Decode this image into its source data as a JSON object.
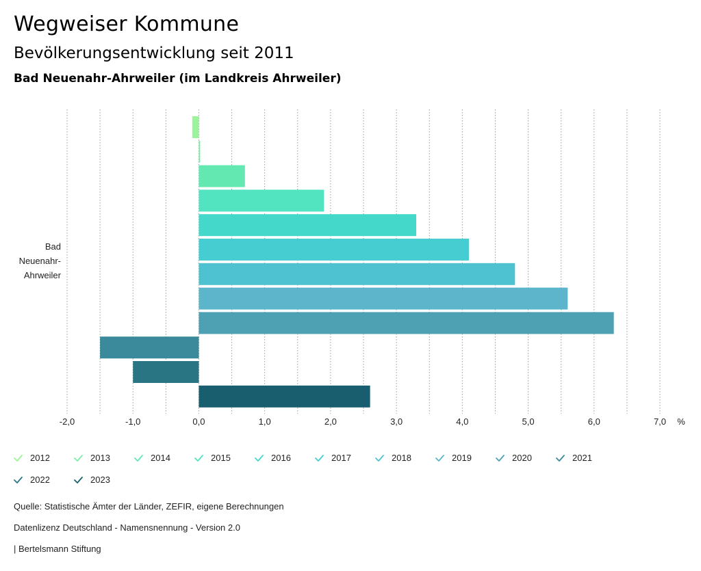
{
  "header": {
    "title": "Wegweiser Kommune",
    "subtitle": "Bevölkerungsentwicklung seit 2011",
    "region": "Bad Neuenahr-Ahrweiler (im Landkreis Ahrweiler)"
  },
  "chart_data": {
    "type": "bar",
    "orientation": "horizontal",
    "categories": [
      "Bad Neuenahr-Ahrweiler"
    ],
    "category_label_lines": [
      "Bad",
      "Neuenahr-",
      "Ahrweiler"
    ],
    "series": [
      {
        "name": "2012",
        "values": [
          -0.1
        ],
        "color": "#9af59a"
      },
      {
        "name": "2013",
        "values": [
          0.02
        ],
        "color": "#7eeda8"
      },
      {
        "name": "2014",
        "values": [
          0.7
        ],
        "color": "#63e8b2"
      },
      {
        "name": "2015",
        "values": [
          1.9
        ],
        "color": "#52e3c1"
      },
      {
        "name": "2016",
        "values": [
          3.3
        ],
        "color": "#43d8c9"
      },
      {
        "name": "2017",
        "values": [
          4.1
        ],
        "color": "#45cdd1"
      },
      {
        "name": "2018",
        "values": [
          4.8
        ],
        "color": "#4fc2d1"
      },
      {
        "name": "2019",
        "values": [
          5.6
        ],
        "color": "#5cb5cb"
      },
      {
        "name": "2020",
        "values": [
          6.3
        ],
        "color": "#4ea1b3"
      },
      {
        "name": "2021",
        "values": [
          -1.5
        ],
        "color": "#3a8a9b"
      },
      {
        "name": "2022",
        "values": [
          -1.0
        ],
        "color": "#297584"
      },
      {
        "name": "2023",
        "values": [
          2.6
        ],
        "color": "#195e6e"
      }
    ],
    "xlim": [
      -2.0,
      7.0
    ],
    "x_ticks": [
      -2.0,
      -1.0,
      0.0,
      1.0,
      2.0,
      3.0,
      4.0,
      5.0,
      6.0,
      7.0
    ],
    "x_tick_labels": [
      "-2,0",
      "-1,0",
      "0,0",
      "1,0",
      "2,0",
      "3,0",
      "4,0",
      "5,0",
      "6,0",
      "7,0"
    ],
    "x_unit": "%",
    "grid": true,
    "legend_position": "bottom"
  },
  "footer": {
    "source": "Quelle: Statistische Ämter der Länder, ZEFIR, eigene Berechnungen",
    "license": "Datenlizenz Deutschland - Namensnennung - Version 2.0",
    "publisher": "| Bertelsmann Stiftung"
  }
}
